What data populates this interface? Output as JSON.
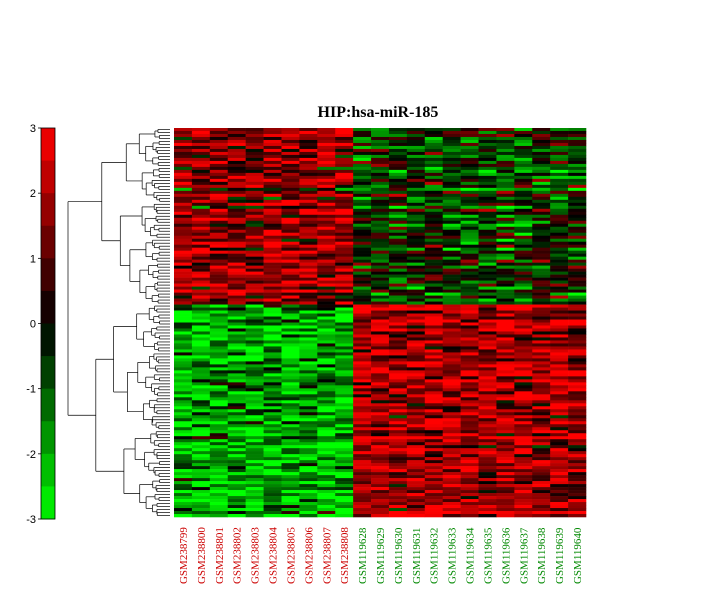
{
  "chart_data": {
    "type": "heatmap",
    "title": "HIP:hsa-miR-185",
    "colorbar": {
      "ticks": [
        "3",
        "2",
        "1",
        "0",
        "-1",
        "-2",
        "-3"
      ],
      "min": -3,
      "max": 3,
      "colors": {
        "high": "#ff0000",
        "mid": "#000000",
        "low": "#00ff00"
      }
    },
    "columns": [
      {
        "label": "GSM238799",
        "group_color": "#cc0000"
      },
      {
        "label": "GSM238800",
        "group_color": "#cc0000"
      },
      {
        "label": "GSM238801",
        "group_color": "#cc0000"
      },
      {
        "label": "GSM238802",
        "group_color": "#cc0000"
      },
      {
        "label": "GSM238803",
        "group_color": "#cc0000"
      },
      {
        "label": "GSM238804",
        "group_color": "#cc0000"
      },
      {
        "label": "GSM238805",
        "group_color": "#cc0000"
      },
      {
        "label": "GSM238806",
        "group_color": "#cc0000"
      },
      {
        "label": "GSM238807",
        "group_color": "#cc0000"
      },
      {
        "label": "GSM238808",
        "group_color": "#cc0000"
      },
      {
        "label": "GSM119628",
        "group_color": "#008800"
      },
      {
        "label": "GSM119629",
        "group_color": "#008800"
      },
      {
        "label": "GSM119630",
        "group_color": "#008800"
      },
      {
        "label": "GSM119631",
        "group_color": "#008800"
      },
      {
        "label": "GSM119632",
        "group_color": "#008800"
      },
      {
        "label": "GSM119633",
        "group_color": "#008800"
      },
      {
        "label": "GSM119634",
        "group_color": "#008800"
      },
      {
        "label": "GSM119635",
        "group_color": "#008800"
      },
      {
        "label": "GSM119636",
        "group_color": "#008800"
      },
      {
        "label": "GSM119637",
        "group_color": "#008800"
      },
      {
        "label": "GSM119638",
        "group_color": "#008800"
      },
      {
        "label": "GSM119639",
        "group_color": "#008800"
      },
      {
        "label": "GSM119640",
        "group_color": "#008800"
      }
    ],
    "row_count": 130,
    "cluster_pattern": {
      "upper_block_row_fraction": 0.45,
      "upper_block": {
        "group1_mean": 1.6,
        "group2_mean": -0.6
      },
      "lower_block": {
        "group1_mean": -2.0,
        "group2_mean": 2.0
      }
    }
  }
}
